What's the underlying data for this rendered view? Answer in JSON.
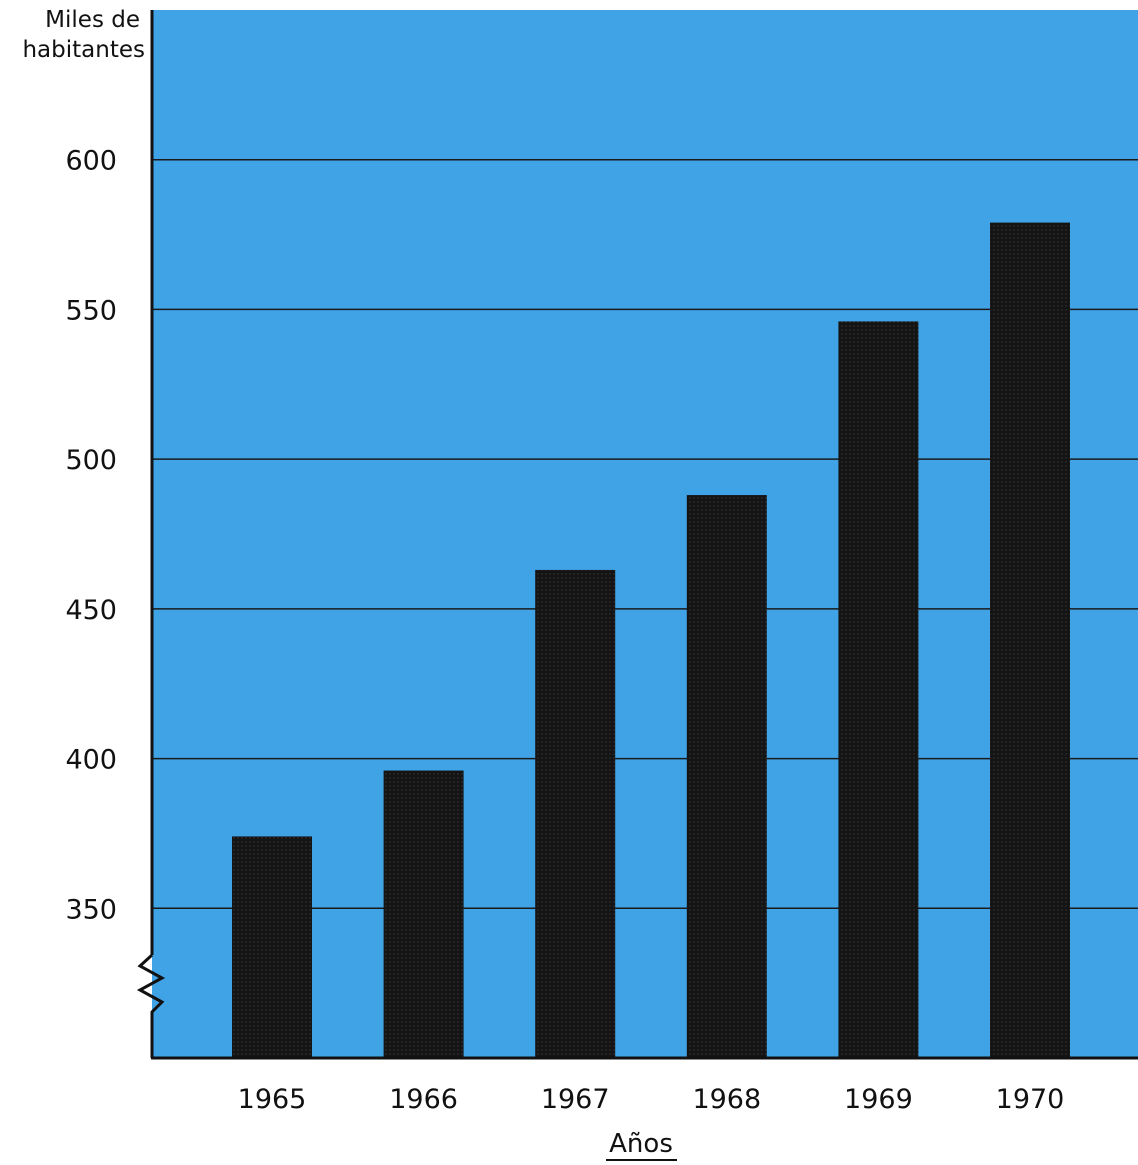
{
  "chart_data": {
    "type": "bar",
    "title": "",
    "ylabel_lines": [
      "Miles de",
      "habitantes"
    ],
    "xlabel": "Años",
    "categories": [
      "1965",
      "1966",
      "1967",
      "1968",
      "1969",
      "1970"
    ],
    "values": [
      374,
      396,
      463,
      488,
      546,
      579
    ],
    "yticks": [
      350,
      400,
      450,
      500,
      550,
      600
    ],
    "ytick_labels": [
      "350",
      "400",
      "450",
      "500",
      "550",
      "600"
    ],
    "ylim": [
      300,
      650
    ],
    "axis_break": true,
    "grid": true,
    "legend": "none",
    "colors": {
      "background": "#3FA3E6",
      "bar": "#111111",
      "grid": "#1a1a1a",
      "axis": "#111111",
      "text": "#111111"
    }
  }
}
